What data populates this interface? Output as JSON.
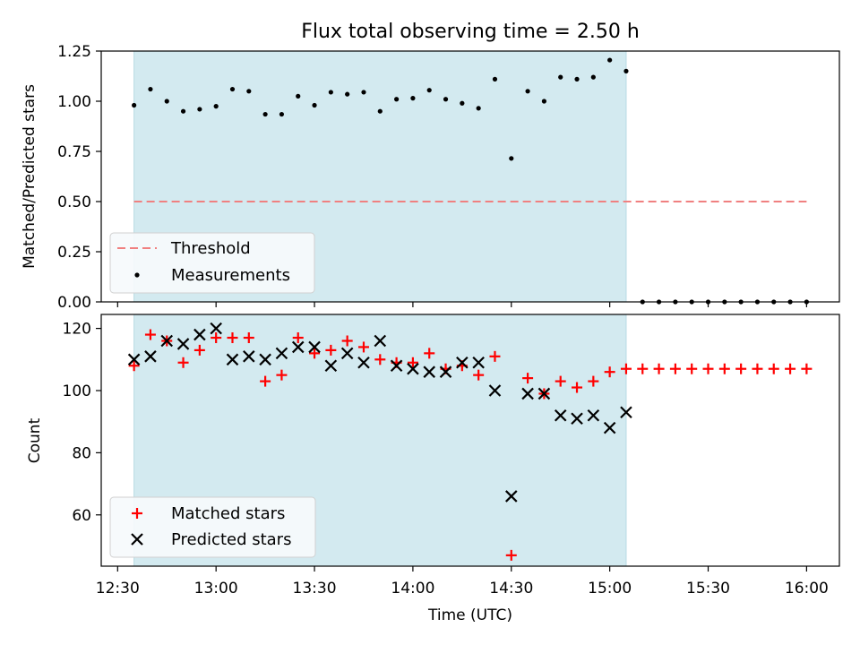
{
  "figure_title": "Flux total observing time = 2.50 h",
  "x_axis_label": "Time (UTC)",
  "x_tick_labels": [
    "12:30",
    "13:00",
    "13:30",
    "14:00",
    "14:30",
    "15:00",
    "15:30",
    "16:00"
  ],
  "chart_data": [
    {
      "type": "scatter",
      "ylabel": "Matched/Predicted stars",
      "xlim": [
        "12:25",
        "16:10"
      ],
      "ylim": [
        0,
        1.25
      ],
      "y_ticks": [
        "0.00",
        "0.25",
        "0.50",
        "0.75",
        "1.00",
        "1.25"
      ],
      "shaded_span": {
        "start": "12:35",
        "end": "15:05",
        "color": "#d3eaf0"
      },
      "threshold": {
        "name": "Threshold",
        "value": 0.5,
        "x_range": [
          "12:35",
          "16:00"
        ],
        "color": "#f08080",
        "style": "dashed"
      },
      "legend": {
        "location": "lower left",
        "entries": [
          "Threshold",
          "Measurements"
        ]
      },
      "series": [
        {
          "name": "Measurements",
          "color": "#000000",
          "marker": "dot",
          "points": [
            [
              "12:35",
              0.98
            ],
            [
              "12:40",
              1.06
            ],
            [
              "12:45",
              1.0
            ],
            [
              "12:50",
              0.95
            ],
            [
              "12:55",
              0.96
            ],
            [
              "13:00",
              0.975
            ],
            [
              "13:05",
              1.06
            ],
            [
              "13:10",
              1.05
            ],
            [
              "13:15",
              0.935
            ],
            [
              "13:20",
              0.935
            ],
            [
              "13:25",
              1.025
            ],
            [
              "13:30",
              0.98
            ],
            [
              "13:35",
              1.045
            ],
            [
              "13:40",
              1.035
            ],
            [
              "13:45",
              1.045
            ],
            [
              "13:50",
              0.95
            ],
            [
              "13:55",
              1.01
            ],
            [
              "14:00",
              1.015
            ],
            [
              "14:05",
              1.055
            ],
            [
              "14:10",
              1.01
            ],
            [
              "14:15",
              0.99
            ],
            [
              "14:20",
              0.965
            ],
            [
              "14:25",
              1.11
            ],
            [
              "14:30",
              0.715
            ],
            [
              "14:35",
              1.05
            ],
            [
              "14:40",
              1.0
            ],
            [
              "14:45",
              1.12
            ],
            [
              "14:50",
              1.11
            ],
            [
              "14:55",
              1.12
            ],
            [
              "15:00",
              1.205
            ],
            [
              "15:05",
              1.15
            ],
            [
              "15:10",
              0.0
            ],
            [
              "15:15",
              0.0
            ],
            [
              "15:20",
              0.0
            ],
            [
              "15:25",
              0.0
            ],
            [
              "15:30",
              0.0
            ],
            [
              "15:35",
              0.0
            ],
            [
              "15:40",
              0.0
            ],
            [
              "15:45",
              0.0
            ],
            [
              "15:50",
              0.0
            ],
            [
              "15:55",
              0.0
            ],
            [
              "16:00",
              0.0
            ]
          ]
        }
      ]
    },
    {
      "type": "scatter",
      "ylabel": "Count",
      "xlim": [
        "12:25",
        "16:10"
      ],
      "ylim": [
        43.5,
        124.5
      ],
      "y_ticks": [
        "60",
        "80",
        "100",
        "120"
      ],
      "shaded_span": {
        "start": "12:35",
        "end": "15:05",
        "color": "#d3eaf0"
      },
      "legend": {
        "location": "lower left",
        "entries": [
          "Matched stars",
          "Predicted stars"
        ]
      },
      "series": [
        {
          "name": "Matched stars",
          "color": "#ff0000",
          "marker": "plus",
          "points": [
            [
              "12:35",
              108
            ],
            [
              "12:40",
              118
            ],
            [
              "12:45",
              116
            ],
            [
              "12:50",
              109
            ],
            [
              "12:55",
              113
            ],
            [
              "13:00",
              117
            ],
            [
              "13:05",
              117
            ],
            [
              "13:10",
              117
            ],
            [
              "13:15",
              103
            ],
            [
              "13:20",
              105
            ],
            [
              "13:25",
              117
            ],
            [
              "13:30",
              112
            ],
            [
              "13:35",
              113
            ],
            [
              "13:40",
              116
            ],
            [
              "13:45",
              114
            ],
            [
              "13:50",
              110
            ],
            [
              "13:55",
              109
            ],
            [
              "14:00",
              109
            ],
            [
              "14:05",
              112
            ],
            [
              "14:10",
              107
            ],
            [
              "14:15",
              108
            ],
            [
              "14:20",
              105
            ],
            [
              "14:25",
              111
            ],
            [
              "14:30",
              47
            ],
            [
              "14:35",
              104
            ],
            [
              "14:40",
              99
            ],
            [
              "14:45",
              103
            ],
            [
              "14:50",
              101
            ],
            [
              "14:55",
              103
            ],
            [
              "15:00",
              106
            ],
            [
              "15:05",
              107
            ],
            [
              "15:10",
              107
            ],
            [
              "15:15",
              107
            ],
            [
              "15:20",
              107
            ],
            [
              "15:25",
              107
            ],
            [
              "15:30",
              107
            ],
            [
              "15:35",
              107
            ],
            [
              "15:40",
              107
            ],
            [
              "15:45",
              107
            ],
            [
              "15:50",
              107
            ],
            [
              "15:55",
              107
            ],
            [
              "16:00",
              107
            ]
          ]
        },
        {
          "name": "Predicted stars",
          "color": "#000000",
          "marker": "x",
          "points": [
            [
              "12:35",
              110
            ],
            [
              "12:40",
              111
            ],
            [
              "12:45",
              116
            ],
            [
              "12:50",
              115
            ],
            [
              "12:55",
              118
            ],
            [
              "13:00",
              120
            ],
            [
              "13:05",
              110
            ],
            [
              "13:10",
              111
            ],
            [
              "13:15",
              110
            ],
            [
              "13:20",
              112
            ],
            [
              "13:25",
              114
            ],
            [
              "13:30",
              114
            ],
            [
              "13:35",
              108
            ],
            [
              "13:40",
              112
            ],
            [
              "13:45",
              109
            ],
            [
              "13:50",
              116
            ],
            [
              "13:55",
              108
            ],
            [
              "14:00",
              107
            ],
            [
              "14:05",
              106
            ],
            [
              "14:10",
              106
            ],
            [
              "14:15",
              109
            ],
            [
              "14:20",
              109
            ],
            [
              "14:25",
              100
            ],
            [
              "14:30",
              66
            ],
            [
              "14:35",
              99
            ],
            [
              "14:40",
              99
            ],
            [
              "14:45",
              92
            ],
            [
              "14:50",
              91
            ],
            [
              "14:55",
              92
            ],
            [
              "15:00",
              88
            ],
            [
              "15:05",
              93
            ]
          ]
        }
      ]
    }
  ]
}
